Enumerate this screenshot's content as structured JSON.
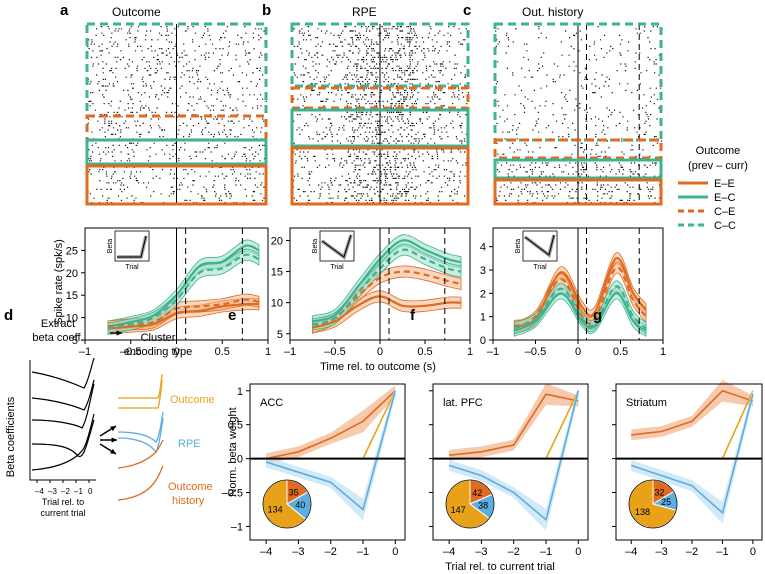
{
  "colors": {
    "orange": "#e06a1f",
    "orange_fill": "#f2b58a",
    "teal": "#3db391",
    "teal_fill": "#9ddcc5",
    "blue": "#5aaee0",
    "blue_fill": "#bfe0f4",
    "gold": "#e8a21a"
  },
  "panels": {
    "a": {
      "letter": "a",
      "title": "Outcome"
    },
    "b": {
      "letter": "b",
      "title": "RPE"
    },
    "c": {
      "letter": "c",
      "title": "Out. history"
    },
    "d": {
      "letter": "d"
    },
    "e": {
      "letter": "e",
      "region": "ACC"
    },
    "f": {
      "letter": "f",
      "region": "lat. PFC"
    },
    "g": {
      "letter": "g",
      "region": "Striatum"
    }
  },
  "legend": {
    "title_line1": "Outcome",
    "title_line2": "(prev – curr)",
    "items": [
      "E–E",
      "E–C",
      "C–E",
      "C–C"
    ]
  },
  "top_axes": {
    "ylabel": "Spike rate (spk/s)",
    "xlabel": "Time rel. to outcome (s)",
    "inset_ylabel": "Beta",
    "inset_xlabel": "Trial"
  },
  "panel_d": {
    "extract_line1": "Extract",
    "extract_line2": "beta coeff.",
    "cluster_line1": "Cluster",
    "cluster_line2": "encoding type",
    "ylabel": "Beta coefficients",
    "xticks": [
      "–4",
      "–3",
      "–2",
      "–1",
      "0"
    ],
    "xlabel_line1": "Trial rel. to",
    "xlabel_line2": "current trial",
    "cluster_labels": [
      "Outcome",
      "RPE",
      "Outcome",
      "history"
    ]
  },
  "bottom_axes": {
    "ylabel": "Norm. beta weight",
    "xlabel": "Trial rel. to current trial"
  },
  "chart_data": [
    {
      "type": "line",
      "panel": "a",
      "title": "Outcome",
      "xlabel": "Time rel. to outcome (s)",
      "ylabel": "Spike rate (spk/s)",
      "xlim": [
        -1,
        1
      ],
      "ylim": [
        5,
        30
      ],
      "xticks": [
        -1,
        -0.5,
        0,
        0.5,
        1
      ],
      "yticks": [
        5,
        10,
        15,
        20,
        25
      ],
      "x": [
        -0.75,
        -0.5,
        -0.25,
        0,
        0.25,
        0.5,
        0.75,
        0.9
      ],
      "series": [
        {
          "name": "E–E",
          "values": [
            7.5,
            8,
            8.5,
            11,
            11.5,
            12.5,
            13,
            13
          ]
        },
        {
          "name": "E–C",
          "values": [
            8,
            9,
            10.5,
            15,
            21.5,
            22.5,
            26,
            25
          ]
        },
        {
          "name": "C–E",
          "values": [
            8,
            8.5,
            9,
            12,
            12.5,
            13,
            14,
            13.5
          ]
        },
        {
          "name": "C–C",
          "values": [
            7.5,
            8.5,
            10,
            14,
            20,
            21,
            24,
            23
          ]
        }
      ]
    },
    {
      "type": "line",
      "panel": "b",
      "title": "RPE",
      "xlabel": "Time rel. to outcome (s)",
      "ylabel": "Spike rate (spk/s)",
      "xlim": [
        -1,
        1
      ],
      "ylim": [
        4,
        22
      ],
      "xticks": [
        -1,
        -0.5,
        0,
        0.5,
        1
      ],
      "yticks": [
        5,
        10,
        15,
        20
      ],
      "x": [
        -0.75,
        -0.5,
        -0.25,
        0,
        0.25,
        0.5,
        0.75,
        0.9
      ],
      "series": [
        {
          "name": "E–E",
          "values": [
            6,
            7,
            9.5,
            11,
            9.5,
            9.5,
            10,
            10
          ]
        },
        {
          "name": "E–C",
          "values": [
            7,
            8,
            12.5,
            17,
            20,
            18.5,
            17,
            16.5
          ]
        },
        {
          "name": "C–E",
          "values": [
            6,
            7.5,
            11,
            14,
            15,
            14.5,
            13.5,
            13
          ]
        },
        {
          "name": "C–C",
          "values": [
            6.5,
            7.5,
            11.5,
            15.5,
            18.5,
            17,
            15.5,
            15
          ]
        }
      ]
    },
    {
      "type": "line",
      "panel": "c",
      "title": "Out. history",
      "xlabel": "Time rel. to outcome (s)",
      "ylabel": "Spike rate (spk/s)",
      "xlim": [
        -1,
        1
      ],
      "ylim": [
        0,
        4.8
      ],
      "xticks": [
        -1,
        -0.5,
        0,
        0.5,
        1
      ],
      "yticks": [
        0,
        1,
        2,
        3,
        4
      ],
      "x": [
        -0.75,
        -0.5,
        -0.2,
        0.05,
        0.2,
        0.45,
        0.65,
        0.8
      ],
      "series": [
        {
          "name": "E–E",
          "values": [
            0.6,
            0.9,
            2.9,
            1.4,
            1.2,
            3.5,
            2.0,
            1.3
          ]
        },
        {
          "name": "E–C",
          "values": [
            0.4,
            0.8,
            2.0,
            0.8,
            0.6,
            2.0,
            0.8,
            0.4
          ]
        },
        {
          "name": "C–E",
          "values": [
            0.5,
            1.0,
            2.6,
            1.0,
            0.9,
            3.1,
            1.7,
            1.0
          ]
        },
        {
          "name": "C–C",
          "values": [
            0.5,
            0.9,
            2.2,
            0.9,
            0.7,
            2.3,
            1.0,
            0.5
          ]
        }
      ]
    },
    {
      "type": "line",
      "panel": "e",
      "title": "ACC",
      "xlabel": "Trial rel. to current trial",
      "ylabel": "Norm. beta weight",
      "xlim": [
        -4.5,
        0.3
      ],
      "ylim": [
        -1.2,
        1.1
      ],
      "xticks": [
        -4,
        -3,
        -2,
        -1,
        0
      ],
      "yticks": [
        -1,
        -0.5,
        0,
        0.5,
        1
      ],
      "x": [
        -4,
        -3,
        -2,
        -1,
        0
      ],
      "series": [
        {
          "name": "Outcome history",
          "values": [
            0,
            0.1,
            0.3,
            0.55,
            1
          ]
        },
        {
          "name": "Outcome",
          "values": [
            0,
            0,
            0,
            0,
            1
          ]
        },
        {
          "name": "RPE",
          "values": [
            -0.05,
            -0.2,
            -0.35,
            -0.75,
            1
          ]
        }
      ],
      "pie": [
        {
          "label": "Outcome",
          "value": 134
        },
        {
          "label": "Outcome history",
          "value": 35
        },
        {
          "label": "RPE",
          "value": 40
        }
      ]
    },
    {
      "type": "line",
      "panel": "f",
      "title": "lat. PFC",
      "xlabel": "Trial rel. to current trial",
      "ylabel": "Norm. beta weight",
      "xlim": [
        -4.5,
        0.3
      ],
      "ylim": [
        -1.2,
        1.1
      ],
      "xticks": [
        -4,
        -3,
        -2,
        -1,
        0
      ],
      "yticks": [
        -1,
        -0.5,
        0,
        0.5,
        1
      ],
      "x": [
        -4,
        -3,
        -2,
        -1,
        0
      ],
      "series": [
        {
          "name": "Outcome history",
          "values": [
            0.05,
            0.1,
            0.2,
            0.95,
            0.85
          ]
        },
        {
          "name": "Outcome",
          "values": [
            0,
            0,
            0,
            0,
            1
          ]
        },
        {
          "name": "RPE",
          "values": [
            -0.1,
            -0.25,
            -0.5,
            -0.9,
            1
          ]
        }
      ],
      "pie": [
        {
          "label": "Outcome",
          "value": 147
        },
        {
          "label": "Outcome history",
          "value": 42
        },
        {
          "label": "RPE",
          "value": 38
        }
      ]
    },
    {
      "type": "line",
      "panel": "g",
      "title": "Striatum",
      "xlabel": "Trial rel. to current trial",
      "ylabel": "Norm. beta weight",
      "xlim": [
        -4.5,
        0.3
      ],
      "ylim": [
        -1.2,
        1.1
      ],
      "xticks": [
        -4,
        -3,
        -2,
        -1,
        0
      ],
      "yticks": [
        -1,
        -0.5,
        0,
        0.5,
        1
      ],
      "x": [
        -4,
        -3,
        -2,
        -1,
        0
      ],
      "series": [
        {
          "name": "Outcome history",
          "values": [
            0.35,
            0.4,
            0.55,
            1,
            0.85
          ]
        },
        {
          "name": "Outcome",
          "values": [
            0,
            0,
            0,
            0,
            1
          ]
        },
        {
          "name": "RPE",
          "values": [
            -0.1,
            -0.25,
            -0.4,
            -0.8,
            0.95
          ]
        }
      ],
      "pie": [
        {
          "label": "Outcome",
          "value": 138
        },
        {
          "label": "Outcome history",
          "value": 32
        },
        {
          "label": "RPE",
          "value": 25
        }
      ]
    }
  ]
}
